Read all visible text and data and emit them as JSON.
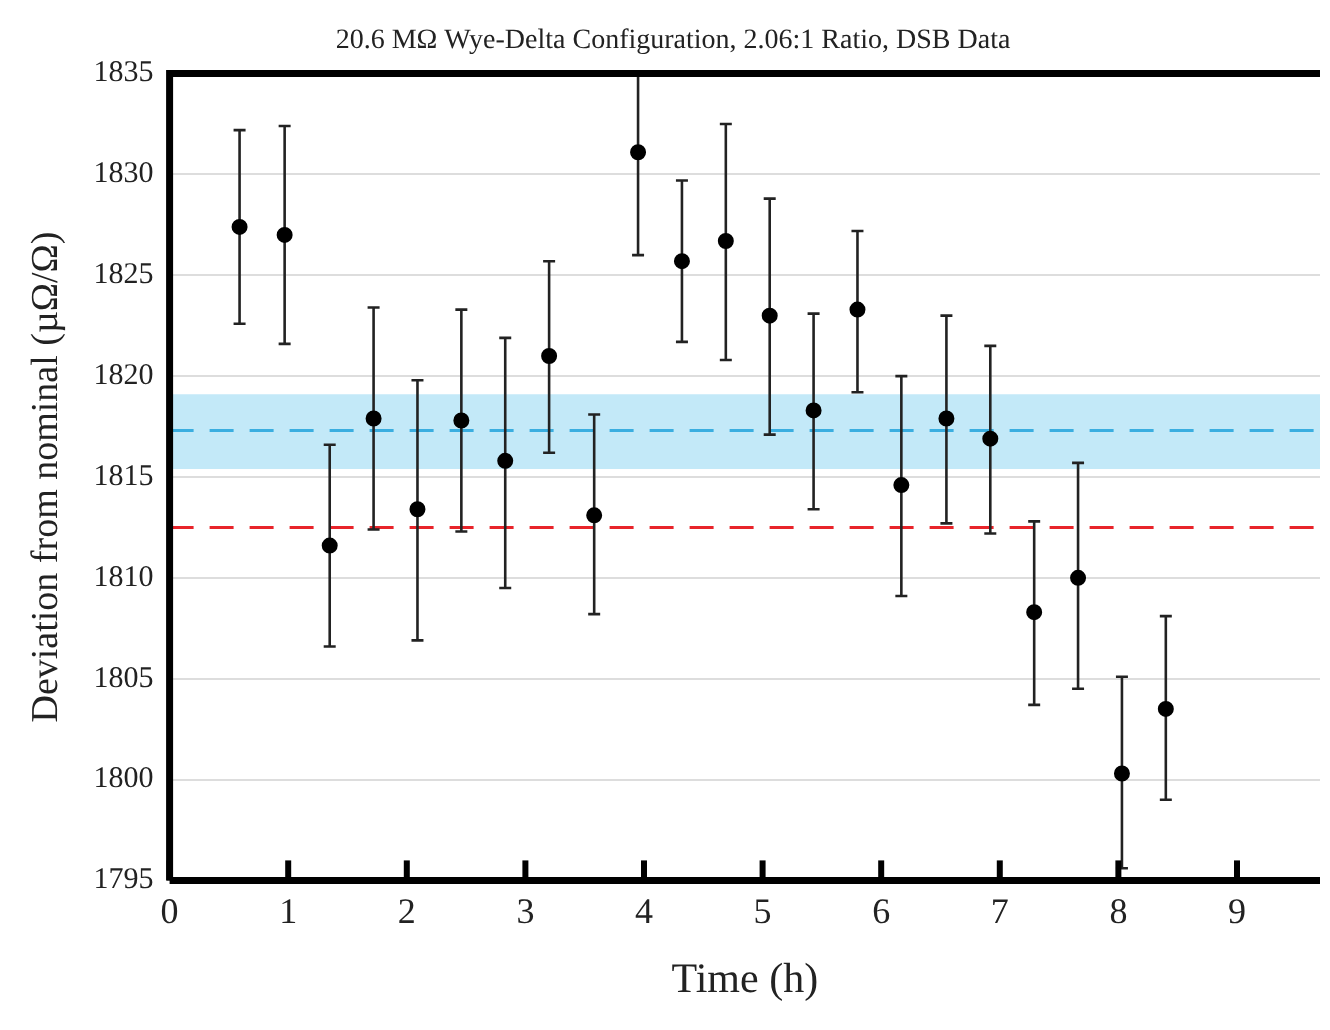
{
  "chart_data": {
    "type": "scatter",
    "title": "20.6 MΩ Wye-Delta Configuration, 2.06:1 Ratio, DSB Data",
    "xlabel": "Time (h)",
    "ylabel": "Deviation from nominal (µΩ/Ω)",
    "x": [
      0.59,
      0.97,
      1.35,
      1.72,
      2.09,
      2.46,
      2.83,
      3.2,
      3.58,
      3.95,
      4.32,
      4.69,
      5.06,
      5.43,
      5.8,
      6.17,
      6.55,
      6.92,
      7.29,
      7.66,
      8.03,
      8.4
    ],
    "series": [
      {
        "color": "#000000",
        "values": [
          1827.4,
          1827.0,
          1811.6,
          1817.9,
          1813.4,
          1817.8,
          1815.8,
          1821.0,
          1813.1,
          1831.1,
          1825.7,
          1826.7,
          1823.0,
          1818.3,
          1823.3,
          1814.6,
          1817.9,
          1816.9,
          1808.3,
          1810.0,
          1800.3,
          1803.5
        ],
        "errors": [
          [
            1822.6,
            1832.2
          ],
          [
            1821.6,
            1832.4
          ],
          [
            1806.6,
            1816.6
          ],
          [
            1812.4,
            1823.4
          ],
          [
            1806.9,
            1819.8
          ],
          [
            1812.3,
            1823.3
          ],
          [
            1809.5,
            1821.9
          ],
          [
            1816.2,
            1825.7
          ],
          [
            1808.2,
            1818.1
          ],
          [
            1826.0,
            1835.0
          ],
          [
            1821.7,
            1829.7
          ],
          [
            1820.8,
            1832.5
          ],
          [
            1817.1,
            1828.8
          ],
          [
            1813.4,
            1823.1
          ],
          [
            1819.2,
            1827.2
          ],
          [
            1809.1,
            1820.0
          ],
          [
            1812.7,
            1823.0
          ],
          [
            1812.2,
            1821.5
          ],
          [
            1803.7,
            1812.8
          ],
          [
            1804.5,
            1815.7
          ],
          [
            1795.6,
            1805.1
          ],
          [
            1799.0,
            1808.1
          ]
        ]
      }
    ],
    "xlim": [
      0,
      9.7
    ],
    "xticks": [
      0,
      1,
      2,
      3,
      4,
      5,
      6,
      7,
      8,
      9
    ],
    "ylim": [
      1795,
      1835
    ],
    "yticks": [
      1795,
      1800,
      1805,
      1810,
      1815,
      1820,
      1825,
      1830,
      1835
    ],
    "bands": [
      {
        "axis": "y",
        "from": 1815.4,
        "to": 1819.1,
        "color": "#c3e9f8"
      }
    ],
    "ref_lines": [
      {
        "axis": "y",
        "value": 1817.3,
        "color": "#3aaee0",
        "line_style": "dashed"
      },
      {
        "axis": "y",
        "value": 1812.5,
        "color": "#e8242a",
        "line_style": "dashed"
      }
    ],
    "grid": "y",
    "legend": false,
    "marker": "circle"
  }
}
